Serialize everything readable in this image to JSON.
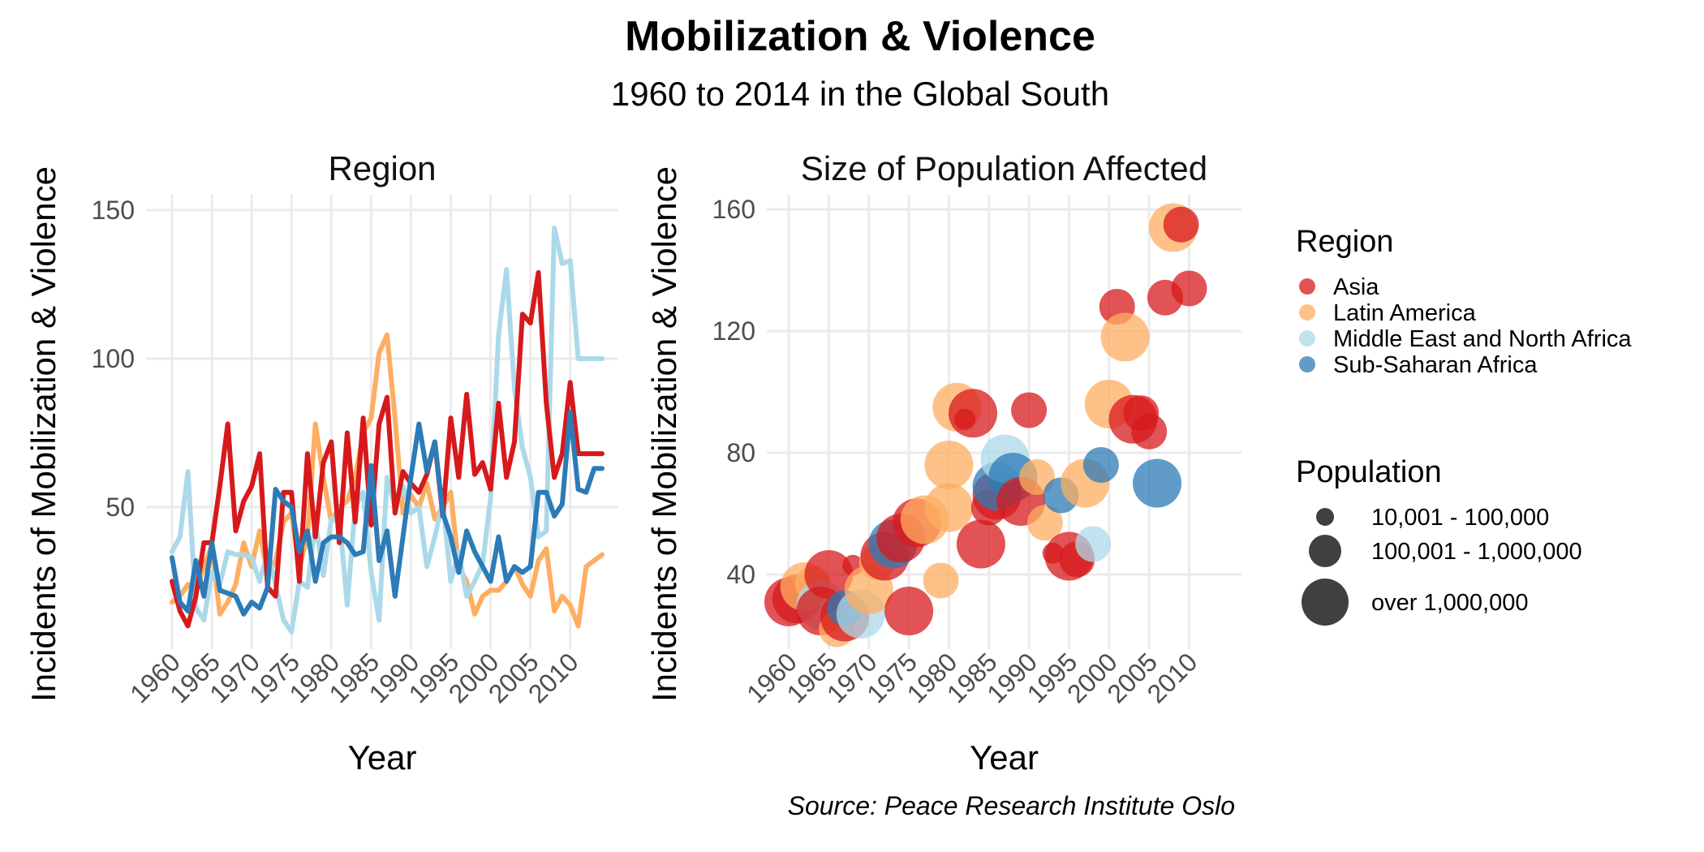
{
  "title": "Mobilization & Violence",
  "subtitle": "1960 to 2014 in the Global South",
  "caption": "Source: Peace Research Institute Oslo",
  "colors": {
    "Asia": "#d7191c",
    "Latin America": "#fdae61",
    "Middle East and North Africa": "#abd9e9",
    "Sub-Saharan Africa": "#2c7bb6"
  },
  "chart_data": [
    {
      "type": "line",
      "title": "Region",
      "xlabel": "Year",
      "ylabel": "Incidents of Mobilization & Violence",
      "xlim": [
        1960,
        2014
      ],
      "ylim": [
        2,
        160
      ],
      "x_ticks": [
        1960,
        1965,
        1970,
        1975,
        1980,
        1985,
        1990,
        1995,
        2000,
        2005,
        2010
      ],
      "y_ticks": [
        50,
        100,
        150
      ],
      "grid": true,
      "x": [
        1960,
        1961,
        1962,
        1963,
        1964,
        1965,
        1966,
        1967,
        1968,
        1969,
        1970,
        1971,
        1972,
        1973,
        1974,
        1975,
        1976,
        1977,
        1978,
        1979,
        1980,
        1981,
        1982,
        1983,
        1984,
        1985,
        1986,
        1987,
        1988,
        1989,
        1990,
        1991,
        1992,
        1993,
        1994,
        1995,
        1996,
        1997,
        1998,
        1999,
        2000,
        2001,
        2002,
        2003,
        2004,
        2005,
        2006,
        2007,
        2008,
        2009,
        2010,
        2011,
        2012,
        2013,
        2014
      ],
      "series": [
        {
          "name": "Latin America",
          "values": [
            18,
            20,
            24,
            22,
            30,
            37,
            14,
            18,
            24,
            38,
            30,
            42,
            27,
            32,
            45,
            48,
            30,
            40,
            78,
            60,
            45,
            50,
            52,
            60,
            75,
            80,
            102,
            108,
            80,
            48,
            54,
            50,
            58,
            46,
            50,
            55,
            30,
            25,
            14,
            20,
            22,
            22,
            25,
            30,
            24,
            20,
            32,
            36,
            15,
            20,
            17,
            10,
            30,
            32,
            34
          ]
        },
        {
          "name": "Middle East and North Africa",
          "values": [
            35,
            40,
            62,
            16,
            12,
            28,
            24,
            35,
            34,
            34,
            33,
            25,
            35,
            24,
            12,
            8,
            25,
            23,
            45,
            27,
            46,
            47,
            17,
            50,
            55,
            28,
            12,
            60,
            50,
            57,
            48,
            50,
            30,
            40,
            52,
            25,
            35,
            20,
            25,
            31,
            53,
            108,
            130,
            90,
            70,
            60,
            40,
            42,
            144,
            132,
            133,
            100,
            100,
            100,
            100
          ]
        },
        {
          "name": "Asia",
          "values": [
            25,
            15,
            10,
            20,
            38,
            38,
            57,
            78,
            42,
            52,
            57,
            68,
            23,
            20,
            55,
            55,
            25,
            68,
            40,
            65,
            72,
            38,
            75,
            45,
            80,
            44,
            78,
            87,
            48,
            62,
            58,
            55,
            61,
            72,
            47,
            80,
            60,
            88,
            61,
            65,
            56,
            85,
            60,
            72,
            115,
            112,
            129,
            85,
            60,
            68,
            92,
            68,
            68,
            68,
            68
          ]
        },
        {
          "name": "Sub-Saharan Africa",
          "values": [
            33,
            18,
            15,
            32,
            20,
            38,
            22,
            21,
            20,
            14,
            18,
            16,
            23,
            56,
            52,
            50,
            35,
            42,
            25,
            38,
            40,
            40,
            38,
            34,
            35,
            64,
            32,
            42,
            20,
            40,
            60,
            78,
            62,
            72,
            48,
            40,
            28,
            42,
            35,
            30,
            25,
            40,
            25,
            30,
            28,
            30,
            55,
            55,
            47,
            51,
            82,
            56,
            55,
            63,
            63
          ]
        }
      ]
    },
    {
      "type": "scatter",
      "title": "Size of Population Affected",
      "xlabel": "Year",
      "ylabel": "Incidents of Mobilization & Violence",
      "xlim": [
        1960,
        2014
      ],
      "ylim": [
        22,
        162
      ],
      "x_ticks": [
        1960,
        1965,
        1970,
        1975,
        1980,
        1985,
        1990,
        1995,
        2000,
        2005,
        2010
      ],
      "y_ticks": [
        40,
        80,
        120,
        160
      ],
      "grid": true,
      "size_legend": {
        "title": "Population",
        "levels": [
          "10,001 - 100,000",
          "100,001 - 1,000,000",
          "over 1,000,000"
        ]
      },
      "points": [
        {
          "x": 1960,
          "y": 31,
          "region": "Asia",
          "size": 3
        },
        {
          "x": 1961,
          "y": 32,
          "region": "Asia",
          "size": 3
        },
        {
          "x": 1962,
          "y": 36,
          "region": "Latin America",
          "size": 3
        },
        {
          "x": 1963,
          "y": 37,
          "region": "Latin America",
          "size": 2
        },
        {
          "x": 1964,
          "y": 30,
          "region": "Middle East and North Africa",
          "size": 3
        },
        {
          "x": 1964,
          "y": 28,
          "region": "Asia",
          "size": 3
        },
        {
          "x": 1965,
          "y": 40,
          "region": "Asia",
          "size": 3
        },
        {
          "x": 1966,
          "y": 22,
          "region": "Latin America",
          "size": 2
        },
        {
          "x": 1967,
          "y": 26,
          "region": "Asia",
          "size": 3
        },
        {
          "x": 1967,
          "y": 29,
          "region": "Sub-Saharan Africa",
          "size": 2
        },
        {
          "x": 1968,
          "y": 43,
          "region": "Asia",
          "size": 1
        },
        {
          "x": 1969,
          "y": 27,
          "region": "Middle East and North Africa",
          "size": 3
        },
        {
          "x": 1970,
          "y": 35,
          "region": "Latin America",
          "size": 3
        },
        {
          "x": 1971,
          "y": 44,
          "region": "Latin America",
          "size": 2
        },
        {
          "x": 1972,
          "y": 46,
          "region": "Asia",
          "size": 3
        },
        {
          "x": 1973,
          "y": 50,
          "region": "Sub-Saharan Africa",
          "size": 3
        },
        {
          "x": 1974,
          "y": 52,
          "region": "Asia",
          "size": 3
        },
        {
          "x": 1975,
          "y": 28,
          "region": "Asia",
          "size": 3
        },
        {
          "x": 1976,
          "y": 57,
          "region": "Asia",
          "size": 3
        },
        {
          "x": 1977,
          "y": 58,
          "region": "Latin America",
          "size": 3
        },
        {
          "x": 1979,
          "y": 38,
          "region": "Latin America",
          "size": 2
        },
        {
          "x": 1980,
          "y": 62,
          "region": "Latin America",
          "size": 3
        },
        {
          "x": 1980,
          "y": 76,
          "region": "Latin America",
          "size": 3
        },
        {
          "x": 1981,
          "y": 95,
          "region": "Latin America",
          "size": 3
        },
        {
          "x": 1982,
          "y": 91,
          "region": "Asia",
          "size": 1
        },
        {
          "x": 1983,
          "y": 93,
          "region": "Asia",
          "size": 3
        },
        {
          "x": 1984,
          "y": 50,
          "region": "Asia",
          "size": 3
        },
        {
          "x": 1985,
          "y": 62,
          "region": "Asia",
          "size": 2
        },
        {
          "x": 1986,
          "y": 66,
          "region": "Asia",
          "size": 3
        },
        {
          "x": 1986,
          "y": 69,
          "region": "Sub-Saharan Africa",
          "size": 3
        },
        {
          "x": 1987,
          "y": 78,
          "region": "Middle East and North Africa",
          "size": 3
        },
        {
          "x": 1988,
          "y": 72,
          "region": "Sub-Saharan Africa",
          "size": 3
        },
        {
          "x": 1989,
          "y": 64,
          "region": "Asia",
          "size": 3
        },
        {
          "x": 1990,
          "y": 94,
          "region": "Asia",
          "size": 2
        },
        {
          "x": 1991,
          "y": 72,
          "region": "Latin America",
          "size": 2
        },
        {
          "x": 1992,
          "y": 57,
          "region": "Latin America",
          "size": 2
        },
        {
          "x": 1993,
          "y": 47,
          "region": "Asia",
          "size": 1
        },
        {
          "x": 1994,
          "y": 66,
          "region": "Sub-Saharan Africa",
          "size": 2
        },
        {
          "x": 1995,
          "y": 46,
          "region": "Asia",
          "size": 3
        },
        {
          "x": 1996,
          "y": 45,
          "region": "Asia",
          "size": 2
        },
        {
          "x": 1997,
          "y": 70,
          "region": "Latin America",
          "size": 3
        },
        {
          "x": 1998,
          "y": 50,
          "region": "Middle East and North Africa",
          "size": 2
        },
        {
          "x": 1999,
          "y": 76,
          "region": "Sub-Saharan Africa",
          "size": 2
        },
        {
          "x": 2000,
          "y": 96,
          "region": "Latin America",
          "size": 3
        },
        {
          "x": 2001,
          "y": 128,
          "region": "Asia",
          "size": 2
        },
        {
          "x": 2002,
          "y": 118,
          "region": "Latin America",
          "size": 3
        },
        {
          "x": 2003,
          "y": 91,
          "region": "Asia",
          "size": 3
        },
        {
          "x": 2004,
          "y": 93,
          "region": "Asia",
          "size": 2
        },
        {
          "x": 2005,
          "y": 87,
          "region": "Asia",
          "size": 2
        },
        {
          "x": 2006,
          "y": 70,
          "region": "Sub-Saharan Africa",
          "size": 3
        },
        {
          "x": 2007,
          "y": 131,
          "region": "Asia",
          "size": 2
        },
        {
          "x": 2008,
          "y": 154,
          "region": "Latin America",
          "size": 3
        },
        {
          "x": 2009,
          "y": 155,
          "region": "Asia",
          "size": 2
        },
        {
          "x": 2010,
          "y": 134,
          "region": "Asia",
          "size": 2
        }
      ]
    }
  ],
  "region_legend": {
    "title": "Region",
    "items": [
      "Asia",
      "Latin America",
      "Middle East and North Africa",
      "Sub-Saharan Africa"
    ]
  }
}
